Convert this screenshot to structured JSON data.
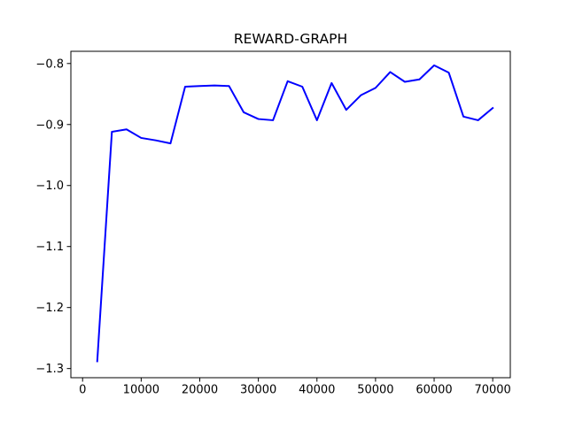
{
  "chart_data": {
    "type": "line",
    "title": "REWARD-GRAPH",
    "xlabel": "",
    "ylabel": "",
    "xlim": [
      -2000,
      73000
    ],
    "ylim": [
      -1.315,
      -0.78
    ],
    "grid": false,
    "legend": "none",
    "xticks": [
      0,
      10000,
      20000,
      30000,
      40000,
      50000,
      60000,
      70000
    ],
    "xtick_labels": [
      "0",
      "10000",
      "20000",
      "30000",
      "40000",
      "50000",
      "60000",
      "70000"
    ],
    "yticks": [
      -1.3,
      -1.2,
      -1.1,
      -1.0,
      -0.9,
      -0.8
    ],
    "ytick_labels": [
      "−1.3",
      "−1.2",
      "−1.1",
      "−1.0",
      "−0.9",
      "−0.8"
    ],
    "series": [
      {
        "color": "#0000ff",
        "x": [
          2500,
          5000,
          7500,
          10000,
          12500,
          15000,
          17500,
          20000,
          22500,
          25000,
          27500,
          30000,
          32500,
          35000,
          37500,
          40000,
          42500,
          45000,
          47500,
          50000,
          52500,
          55000,
          57500,
          60000,
          62500,
          65000,
          67500,
          70000
        ],
        "y": [
          -1.288,
          -0.912,
          -0.908,
          -0.922,
          -0.926,
          -0.931,
          -0.838,
          -0.837,
          -0.836,
          -0.837,
          -0.88,
          -0.891,
          -0.893,
          -0.829,
          -0.838,
          -0.893,
          -0.832,
          -0.876,
          -0.852,
          -0.84,
          -0.814,
          -0.83,
          -0.826,
          -0.803,
          -0.815,
          -0.887,
          -0.893,
          -0.873
        ]
      }
    ]
  }
}
